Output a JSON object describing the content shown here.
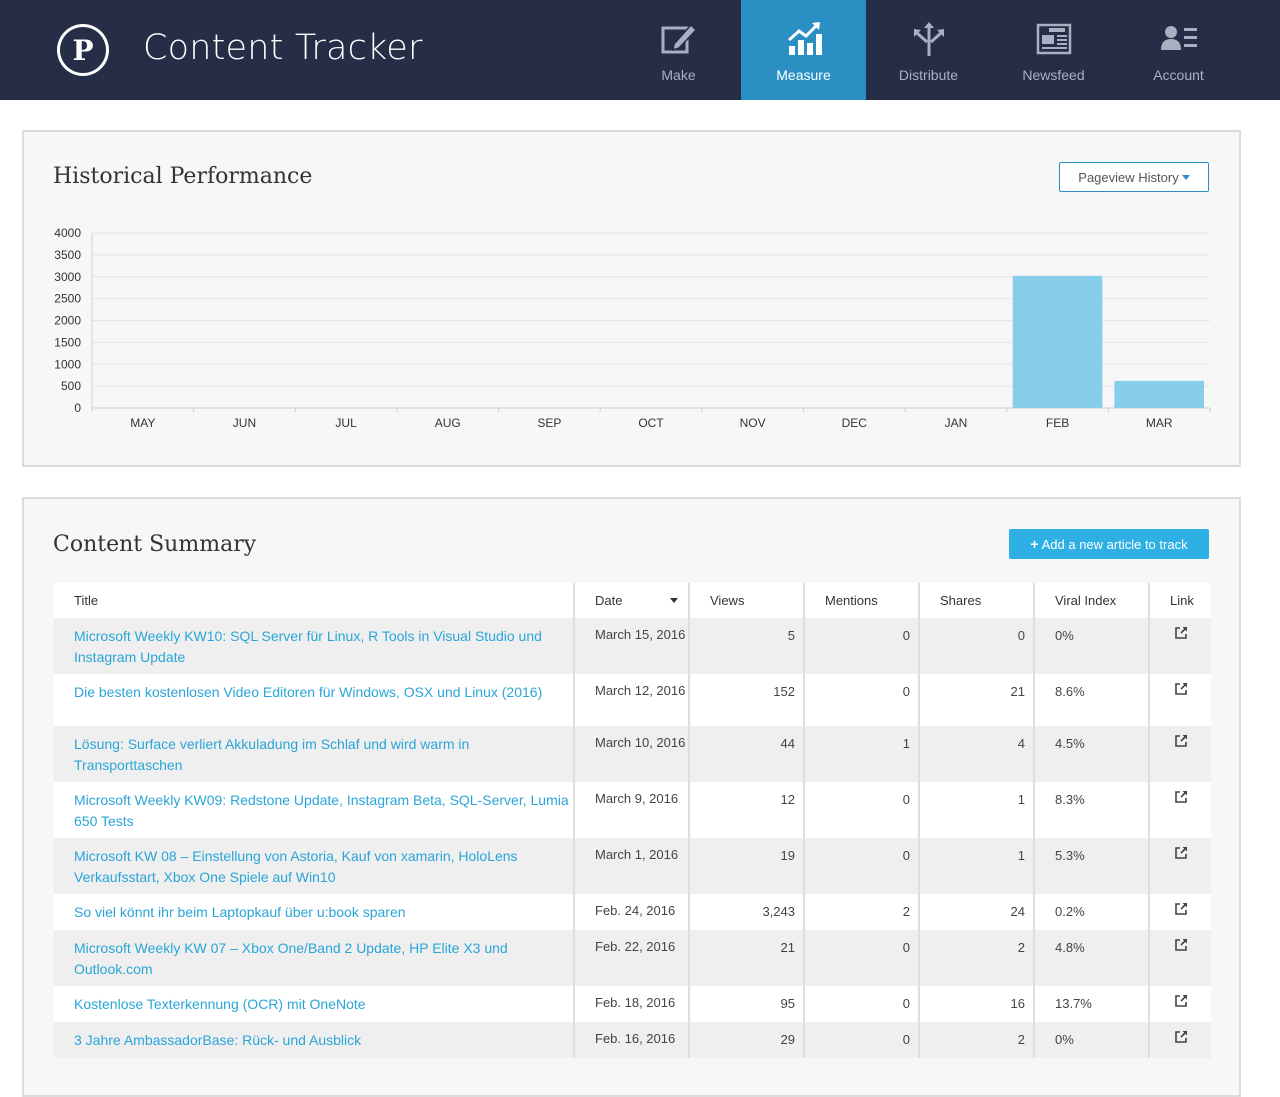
{
  "header": {
    "logo_letter": "P",
    "app_title": "Content Tracker",
    "nav": [
      {
        "label": "Make",
        "icon": "pencil-icon",
        "active": false
      },
      {
        "label": "Measure",
        "icon": "chart-up-icon",
        "active": true
      },
      {
        "label": "Distribute",
        "icon": "split-arrows-icon",
        "active": false
      },
      {
        "label": "Newsfeed",
        "icon": "newspaper-icon",
        "active": false
      },
      {
        "label": "Account",
        "icon": "user-card-icon",
        "active": false
      }
    ],
    "accent_color": "#2a90c4",
    "bar_color": "#252d47"
  },
  "performance": {
    "title": "Historical Performance",
    "dropdown_label": "Pageview History"
  },
  "chart_data": {
    "type": "bar",
    "title": "",
    "xlabel": "",
    "ylabel": "",
    "categories": [
      "MAY",
      "JUN",
      "JUL",
      "AUG",
      "SEP",
      "OCT",
      "NOV",
      "DEC",
      "JAN",
      "FEB",
      "MAR"
    ],
    "values": [
      0,
      0,
      0,
      0,
      0,
      0,
      0,
      0,
      0,
      3020,
      620
    ],
    "ylim": [
      0,
      4000
    ],
    "yticks": [
      0,
      500,
      1000,
      1500,
      2000,
      2500,
      3000,
      3500,
      4000
    ],
    "grid": true,
    "bar_color": "#87ceeb"
  },
  "summary": {
    "title": "Content Summary",
    "add_button": "Add a new article to track",
    "columns": {
      "title": "Title",
      "date": "Date",
      "views": "Views",
      "mentions": "Mentions",
      "shares": "Shares",
      "viral": "Viral Index",
      "link": "Link"
    },
    "rows": [
      {
        "title": "Microsoft Weekly KW10: SQL Server für Linux, R Tools in Visual Studio und Instagram Update",
        "date": "March 15, 2016",
        "views": "5",
        "mentions": "0",
        "shares": "0",
        "viral": "0%"
      },
      {
        "title": "Die besten kostenlosen Video Editoren für Windows, OSX und Linux (2016)",
        "date": "March 12, 2016",
        "views": "152",
        "mentions": "0",
        "shares": "21",
        "viral": "8.6%"
      },
      {
        "title": "Lösung: Surface verliert Akkuladung im Schlaf und wird warm in Transporttaschen",
        "date": "March 10, 2016",
        "views": "44",
        "mentions": "1",
        "shares": "4",
        "viral": "4.5%"
      },
      {
        "title": "Microsoft Weekly KW09: Redstone Update, Instagram Beta, SQL-Server, Lumia 650 Tests",
        "date": "March 9, 2016",
        "views": "12",
        "mentions": "0",
        "shares": "1",
        "viral": "8.3%"
      },
      {
        "title": "Microsoft KW 08 – Einstellung von Astoria, Kauf von xamarin, HoloLens Verkaufsstart, Xbox One Spiele auf Win10",
        "date": "March 1, 2016",
        "views": "19",
        "mentions": "0",
        "shares": "1",
        "viral": "5.3%"
      },
      {
        "title": "So viel könnt ihr beim Laptopkauf über u:book sparen",
        "date": "Feb. 24, 2016",
        "views": "3,243",
        "mentions": "2",
        "shares": "24",
        "viral": "0.2%"
      },
      {
        "title": "Microsoft Weekly KW 07 – Xbox One/Band 2 Update, HP Elite X3 und Outlook.com",
        "date": "Feb. 22, 2016",
        "views": "21",
        "mentions": "0",
        "shares": "2",
        "viral": "4.8%"
      },
      {
        "title": "Kostenlose Texterkennung (OCR) mit OneNote",
        "date": "Feb. 18, 2016",
        "views": "95",
        "mentions": "0",
        "shares": "16",
        "viral": "13.7%"
      },
      {
        "title": "3 Jahre AmbassadorBase: Rück- und Ausblick",
        "date": "Feb. 16, 2016",
        "views": "29",
        "mentions": "0",
        "shares": "2",
        "viral": "0%"
      }
    ]
  }
}
